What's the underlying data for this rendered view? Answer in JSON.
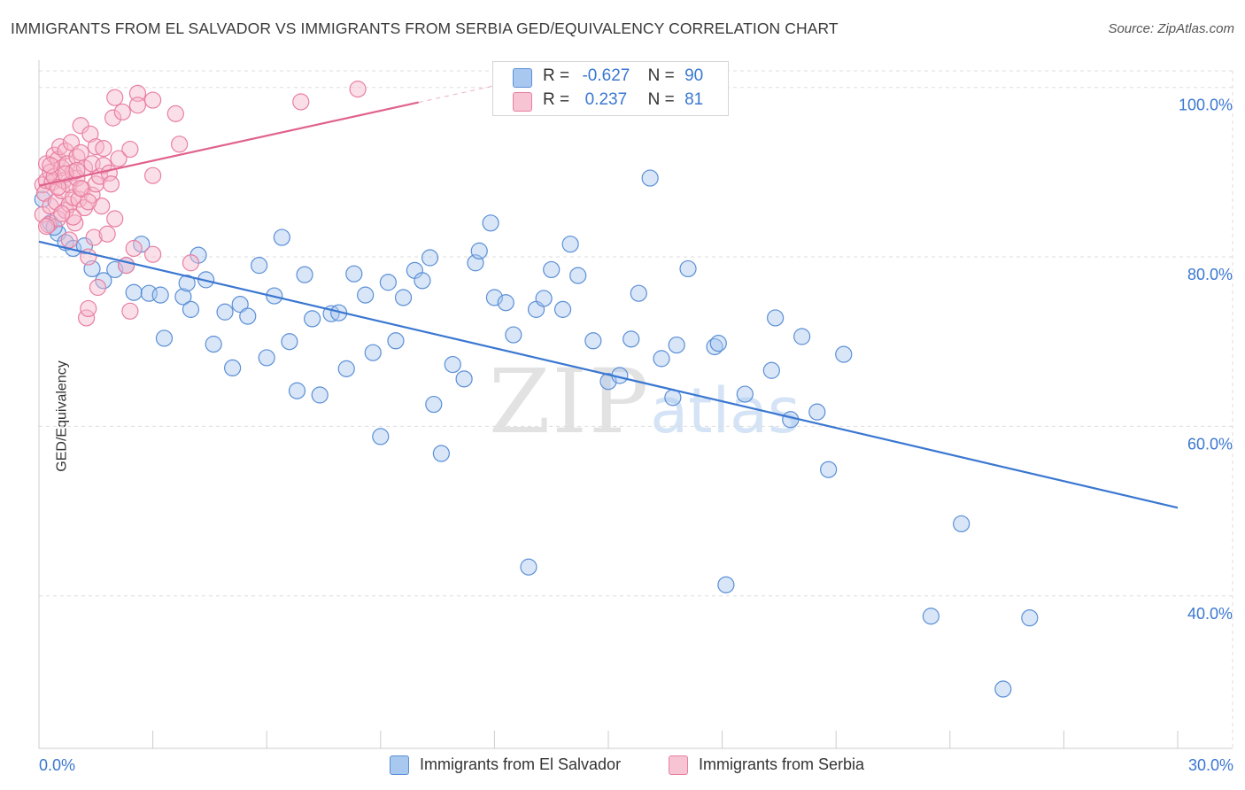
{
  "title": "IMMIGRANTS FROM EL SALVADOR VS IMMIGRANTS FROM SERBIA GED/EQUIVALENCY CORRELATION CHART",
  "source": "Source: ZipAtlas.com",
  "watermark": {
    "zip": "ZIP",
    "atlas": "atlas"
  },
  "legend": {
    "rows": [
      {
        "r_label": "R =",
        "r_value": "-0.627",
        "n_label": "N =",
        "n_value": "90"
      },
      {
        "r_label": "R =",
        "r_value": " 0.237",
        "n_label": "N =",
        "n_value": " 81"
      }
    ]
  },
  "colors": {
    "blue_fill": "#a9c8f0",
    "blue_stroke": "#5b8fd6",
    "blue_line": "#3a77d1",
    "pink_fill": "#f7b8cc",
    "pink_stroke": "#e87fa1",
    "pink_line": "#e0628d",
    "grid": "#dddddd",
    "axis_text": "#3a77d1"
  },
  "chart_data": {
    "type": "scatter",
    "ylabel": "GED/Equivalency",
    "xlim": [
      0,
      30
    ],
    "ylim": [
      22,
      103
    ],
    "x_tick_labels": [
      "0.0%",
      "30.0%"
    ],
    "y_ticks": [
      {
        "value": 40,
        "label": "40.0%"
      },
      {
        "value": 60,
        "label": "60.0%"
      },
      {
        "value": 80,
        "label": "80.0%"
      },
      {
        "value": 100,
        "label": "100.0%"
      }
    ],
    "grid": true,
    "series": [
      {
        "name": "Immigrants from El Salvador",
        "color": "blue",
        "trend": {
          "x0": 0,
          "y0": 81.8,
          "x1": 30,
          "y1": 50.4,
          "dash_from": null
        },
        "points": [
          [
            0.1,
            86.8
          ],
          [
            0.3,
            84.0
          ],
          [
            0.5,
            82.8
          ],
          [
            0.7,
            81.7
          ],
          [
            0.9,
            81.0
          ],
          [
            1.2,
            81.3
          ],
          [
            1.4,
            78.6
          ],
          [
            1.7,
            77.2
          ],
          [
            2.0,
            78.5
          ],
          [
            2.3,
            79.0
          ],
          [
            2.5,
            75.8
          ],
          [
            2.7,
            81.5
          ],
          [
            2.9,
            75.7
          ],
          [
            3.2,
            75.5
          ],
          [
            3.3,
            70.4
          ],
          [
            3.8,
            75.3
          ],
          [
            3.9,
            76.9
          ],
          [
            4.0,
            73.8
          ],
          [
            4.2,
            80.2
          ],
          [
            4.4,
            77.3
          ],
          [
            4.6,
            69.7
          ],
          [
            4.9,
            73.5
          ],
          [
            5.1,
            66.9
          ],
          [
            5.3,
            74.4
          ],
          [
            5.5,
            73.0
          ],
          [
            5.8,
            79.0
          ],
          [
            6.0,
            68.1
          ],
          [
            6.2,
            75.4
          ],
          [
            6.4,
            82.3
          ],
          [
            6.6,
            70.0
          ],
          [
            6.8,
            64.2
          ],
          [
            7.0,
            77.9
          ],
          [
            7.2,
            72.7
          ],
          [
            7.4,
            63.7
          ],
          [
            7.7,
            73.3
          ],
          [
            7.9,
            73.4
          ],
          [
            8.1,
            66.8
          ],
          [
            8.3,
            78.0
          ],
          [
            8.6,
            75.5
          ],
          [
            8.8,
            68.7
          ],
          [
            9.0,
            58.8
          ],
          [
            9.2,
            77.0
          ],
          [
            9.4,
            70.1
          ],
          [
            9.6,
            75.2
          ],
          [
            9.9,
            78.4
          ],
          [
            10.1,
            77.2
          ],
          [
            10.3,
            79.9
          ],
          [
            10.4,
            62.6
          ],
          [
            10.6,
            56.8
          ],
          [
            10.9,
            67.3
          ],
          [
            11.2,
            65.6
          ],
          [
            11.5,
            79.3
          ],
          [
            11.6,
            80.7
          ],
          [
            11.9,
            84.0
          ],
          [
            12.0,
            75.2
          ],
          [
            12.3,
            74.6
          ],
          [
            12.5,
            70.8
          ],
          [
            12.9,
            43.4
          ],
          [
            13.1,
            73.8
          ],
          [
            13.3,
            75.1
          ],
          [
            13.5,
            78.5
          ],
          [
            13.8,
            73.8
          ],
          [
            14.0,
            81.5
          ],
          [
            14.2,
            77.8
          ],
          [
            14.6,
            70.1
          ],
          [
            15.0,
            65.3
          ],
          [
            15.3,
            66.0
          ],
          [
            15.6,
            70.3
          ],
          [
            15.8,
            75.7
          ],
          [
            16.1,
            89.3
          ],
          [
            16.4,
            68.0
          ],
          [
            16.7,
            63.4
          ],
          [
            16.8,
            69.6
          ],
          [
            17.1,
            78.6
          ],
          [
            17.8,
            69.4
          ],
          [
            17.9,
            69.8
          ],
          [
            18.1,
            41.3
          ],
          [
            18.6,
            63.8
          ],
          [
            19.3,
            66.6
          ],
          [
            19.4,
            72.8
          ],
          [
            19.8,
            60.8
          ],
          [
            20.1,
            70.6
          ],
          [
            20.5,
            61.7
          ],
          [
            20.8,
            54.9
          ],
          [
            21.2,
            68.5
          ],
          [
            24.3,
            48.5
          ],
          [
            23.5,
            37.6
          ],
          [
            25.4,
            29.0
          ],
          [
            26.1,
            37.4
          ],
          [
            0.4,
            83.5
          ]
        ]
      },
      {
        "name": "Immigrants from Serbia",
        "color": "pink",
        "trend": {
          "x0": 0,
          "y0": 88.4,
          "x1": 12.0,
          "y1": 100.2,
          "dash_from": 10.0
        },
        "points": [
          [
            0.1,
            88.5
          ],
          [
            0.1,
            85.0
          ],
          [
            0.15,
            87.5
          ],
          [
            0.2,
            91.0
          ],
          [
            0.2,
            89.0
          ],
          [
            0.25,
            83.8
          ],
          [
            0.3,
            86.0
          ],
          [
            0.3,
            90.0
          ],
          [
            0.35,
            88.8
          ],
          [
            0.4,
            92.0
          ],
          [
            0.4,
            89.5
          ],
          [
            0.45,
            86.5
          ],
          [
            0.5,
            84.5
          ],
          [
            0.5,
            91.5
          ],
          [
            0.55,
            93.0
          ],
          [
            0.6,
            90.5
          ],
          [
            0.6,
            87.8
          ],
          [
            0.65,
            89.0
          ],
          [
            0.7,
            92.5
          ],
          [
            0.7,
            85.5
          ],
          [
            0.75,
            91.0
          ],
          [
            0.8,
            88.5
          ],
          [
            0.8,
            86.2
          ],
          [
            0.85,
            93.5
          ],
          [
            0.9,
            90.0
          ],
          [
            0.9,
            87.0
          ],
          [
            0.95,
            84.0
          ],
          [
            1.0,
            91.8
          ],
          [
            1.0,
            89.3
          ],
          [
            1.05,
            86.8
          ],
          [
            1.1,
            95.5
          ],
          [
            1.1,
            92.3
          ],
          [
            1.15,
            88.0
          ],
          [
            1.2,
            90.5
          ],
          [
            1.2,
            85.8
          ],
          [
            1.25,
            72.8
          ],
          [
            1.3,
            73.9
          ],
          [
            1.3,
            80.0
          ],
          [
            1.35,
            94.5
          ],
          [
            1.4,
            91.0
          ],
          [
            1.4,
            87.3
          ],
          [
            1.45,
            82.3
          ],
          [
            1.5,
            93.0
          ],
          [
            1.5,
            88.6
          ],
          [
            1.55,
            76.4
          ],
          [
            1.6,
            89.5
          ],
          [
            1.65,
            86.0
          ],
          [
            1.7,
            92.8
          ],
          [
            1.7,
            90.8
          ],
          [
            1.8,
            82.7
          ],
          [
            1.85,
            89.9
          ],
          [
            1.9,
            88.6
          ],
          [
            1.95,
            96.4
          ],
          [
            2.0,
            98.8
          ],
          [
            2.0,
            84.5
          ],
          [
            2.1,
            91.6
          ],
          [
            2.2,
            97.1
          ],
          [
            2.3,
            79.0
          ],
          [
            2.4,
            92.7
          ],
          [
            2.4,
            73.6
          ],
          [
            2.5,
            81.0
          ],
          [
            2.6,
            99.3
          ],
          [
            2.6,
            97.9
          ],
          [
            3.0,
            80.3
          ],
          [
            3.0,
            89.6
          ],
          [
            3.0,
            98.5
          ],
          [
            3.6,
            96.9
          ],
          [
            3.7,
            93.3
          ],
          [
            4.0,
            79.3
          ],
          [
            6.9,
            98.3
          ],
          [
            8.4,
            99.8
          ],
          [
            0.3,
            90.8
          ],
          [
            0.5,
            88.2
          ],
          [
            0.7,
            89.8
          ],
          [
            0.9,
            84.7
          ],
          [
            1.0,
            90.2
          ],
          [
            1.1,
            88.1
          ],
          [
            1.3,
            86.5
          ],
          [
            0.2,
            83.6
          ],
          [
            0.6,
            85.1
          ],
          [
            0.8,
            82.0
          ]
        ]
      }
    ]
  }
}
